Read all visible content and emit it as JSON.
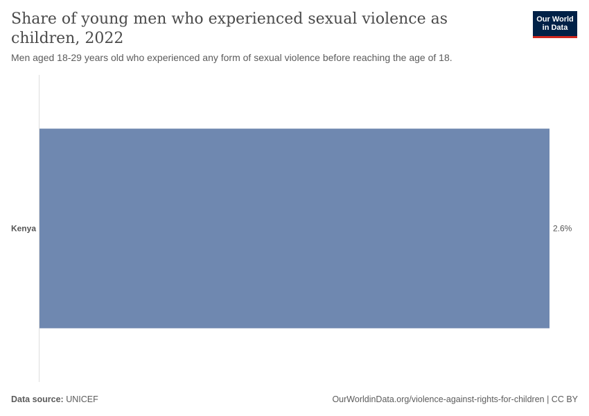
{
  "title": "Share of young men who experienced sexual violence as children, 2022",
  "subtitle": "Men aged 18-29 years old who experienced any form of sexual violence before reaching the age of 18.",
  "logo": {
    "line1": "Our World",
    "line2": "in Data"
  },
  "footer": {
    "source_label": "Data source:",
    "source_value": "UNICEF",
    "url": "OurWorldinData.org/violence-against-rights-for-children | CC BY"
  },
  "colors": {
    "bar": "#6f88b0",
    "axis": "#dddddd",
    "logo_bg": "#002147",
    "logo_accent": "#ce261e"
  },
  "chart_data": {
    "type": "bar",
    "orientation": "horizontal",
    "categories": [
      "Kenya"
    ],
    "values": [
      2.6
    ],
    "value_labels": [
      "2.6%"
    ],
    "unit": "%",
    "xlim": [
      0,
      2.6
    ],
    "grid": false,
    "legend": "none"
  }
}
